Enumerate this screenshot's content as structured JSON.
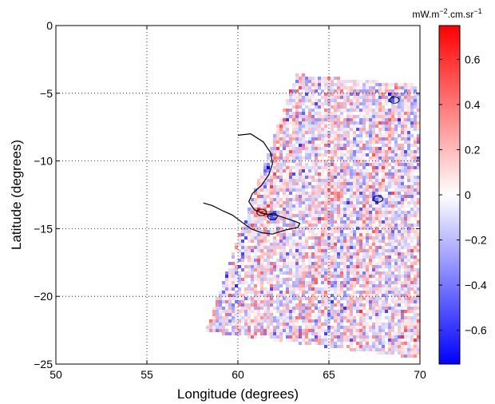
{
  "chart_data": {
    "type": "heatmap",
    "title": "",
    "xlabel": "Longitude (degrees)",
    "ylabel": "Latitude (degrees)",
    "xlim": [
      50,
      70
    ],
    "ylim": [
      -25,
      0
    ],
    "xticks": [
      50,
      55,
      60,
      65,
      70
    ],
    "xtick_labels": [
      "50",
      "55",
      "60",
      "65",
      "70"
    ],
    "yticks": [
      0,
      -5,
      -10,
      -15,
      -20,
      -25
    ],
    "ytick_labels": [
      "0",
      "−5",
      "−10",
      "−15",
      "−20",
      "−25"
    ],
    "grid": true,
    "colormap": "blue-white-red",
    "colors": {
      "low": "#0000ff",
      "mid": "#ffffff",
      "high": "#ff0000"
    },
    "colorbar": {
      "range": [
        -0.75,
        0.75
      ],
      "ticks": [
        0.6,
        0.4,
        0.2,
        0,
        -0.2,
        -0.4,
        -0.6
      ],
      "tick_labels": [
        "0.6",
        "0.4",
        "0.2",
        "0",
        "−0.2",
        "−0.4",
        "−0.6"
      ],
      "unit_base": "mW.m",
      "unit_exp1": "−2",
      "unit_mid": ".cm.sr",
      "unit_exp2": "−1"
    },
    "swath_corners_lonlat": [
      [
        63.2,
        -3.6
      ],
      [
        70,
        -4.4
      ],
      [
        70,
        -24.6
      ],
      [
        58.2,
        -22.6
      ]
    ],
    "coastline": [
      [
        60.0,
        -8.1
      ],
      [
        60.7,
        -8.0
      ],
      [
        61.4,
        -8.6
      ],
      [
        61.8,
        -9.4
      ],
      [
        61.9,
        -10.2
      ],
      [
        61.7,
        -11.0
      ],
      [
        61.3,
        -11.8
      ],
      [
        60.8,
        -12.4
      ],
      [
        60.6,
        -13.0
      ],
      [
        60.9,
        -13.6
      ],
      [
        61.4,
        -13.9
      ],
      [
        62.1,
        -14.0
      ],
      [
        62.8,
        -14.3
      ],
      [
        63.4,
        -14.6
      ],
      [
        63.3,
        -14.9
      ],
      [
        62.6,
        -15.1
      ],
      [
        61.9,
        -15.4
      ],
      [
        61.3,
        -15.3
      ],
      [
        60.7,
        -15.0
      ],
      [
        60.2,
        -14.5
      ],
      [
        59.7,
        -14.0
      ],
      [
        59.2,
        -13.7
      ],
      [
        58.6,
        -13.3
      ],
      [
        58.1,
        -13.1
      ]
    ],
    "notable_features": [
      {
        "lon": 67.7,
        "lat": -12.8,
        "value": -0.7
      },
      {
        "lon": 61.9,
        "lat": -14.1,
        "value": -0.6
      },
      {
        "lon": 61.3,
        "lat": -13.8,
        "value": 0.6
      },
      {
        "lon": 65.4,
        "lat": -12.4,
        "value": 0.5
      },
      {
        "lon": 68.6,
        "lat": -5.5,
        "value": -0.65
      },
      {
        "lon": 61.6,
        "lat": -10.5,
        "value": -0.4
      }
    ]
  }
}
